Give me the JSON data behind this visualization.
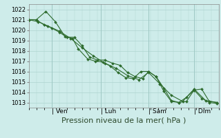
{
  "background_color": "#ceecea",
  "grid_color": "#aed4d0",
  "line_color": "#2d6b2d",
  "marker_color": "#2d6b2d",
  "xlabel": "Pression niveau de la mer( hPa )",
  "xlabel_fontsize": 8,
  "ylim": [
    1012.5,
    1022.5
  ],
  "yticks": [
    1013,
    1014,
    1015,
    1016,
    1017,
    1018,
    1019,
    1020,
    1021,
    1022
  ],
  "ytick_fontsize": 6,
  "xtick_labels": [
    "| Ven",
    "| Lun",
    "| Sam",
    "| Dim"
  ],
  "xtick_positions": [
    0.12,
    0.38,
    0.63,
    0.87
  ],
  "series1_x": [
    0.0,
    0.04,
    0.08,
    0.12,
    0.16,
    0.2,
    0.24,
    0.28,
    0.32,
    0.36,
    0.4,
    0.44,
    0.48,
    0.52,
    0.56,
    0.6,
    0.63,
    0.67,
    0.71,
    0.75,
    0.79,
    0.83,
    0.87,
    0.91,
    0.95,
    0.99
  ],
  "series1_y": [
    1021.0,
    1021.0,
    1020.5,
    1020.2,
    1019.8,
    1019.3,
    1019.3,
    1018.5,
    1017.4,
    1017.1,
    1017.1,
    1016.8,
    1016.6,
    1015.9,
    1015.5,
    1015.3,
    1016.0,
    1015.5,
    1014.1,
    1013.1,
    1013.0,
    1013.1,
    1014.2,
    1014.3,
    1013.1,
    1013.0
  ],
  "series2_x": [
    0.0,
    0.04,
    0.09,
    0.14,
    0.19,
    0.23,
    0.26,
    0.31,
    0.35,
    0.39,
    0.43,
    0.47,
    0.51,
    0.55,
    0.59,
    0.63,
    0.67,
    0.71,
    0.75,
    0.79,
    0.83,
    0.87,
    0.91,
    0.95,
    0.99
  ],
  "series2_y": [
    1021.0,
    1021.0,
    1021.8,
    1020.8,
    1019.4,
    1019.2,
    1018.2,
    1017.2,
    1017.0,
    1016.9,
    1016.5,
    1015.9,
    1015.4,
    1015.3,
    1016.0,
    1016.0,
    1015.5,
    1014.4,
    1013.2,
    1013.0,
    1013.5,
    1014.2,
    1013.4,
    1013.0,
    1012.9
  ],
  "series3_x": [
    0.0,
    0.05,
    0.1,
    0.16,
    0.22,
    0.28,
    0.34,
    0.4,
    0.46,
    0.52,
    0.58,
    0.63,
    0.69,
    0.75,
    0.81,
    0.87,
    0.93,
    0.99
  ],
  "series3_y": [
    1021.0,
    1020.8,
    1020.4,
    1019.9,
    1019.2,
    1018.3,
    1017.5,
    1016.8,
    1016.3,
    1015.6,
    1015.2,
    1015.9,
    1014.8,
    1013.7,
    1013.1,
    1014.3,
    1013.2,
    1013.0
  ],
  "vline_color": "#9ec8c4",
  "vline_lw": 0.7,
  "spine_color": "#888888"
}
